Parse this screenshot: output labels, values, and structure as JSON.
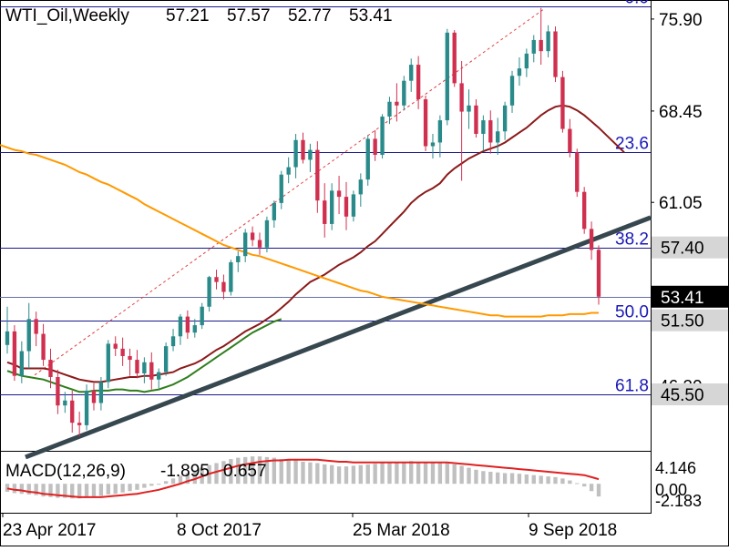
{
  "header": {
    "symbol_label": "WTI_Oil,Weekly",
    "ohlc": [
      "57.21",
      "57.57",
      "52.77",
      "53.41"
    ]
  },
  "price_axis": {
    "ticks": [
      "75.90",
      "68.45",
      "61.05",
      "46.20"
    ],
    "markers": [
      {
        "label": "57.40",
        "value": 57.4,
        "style": "gray"
      },
      {
        "label": "53.41",
        "value": 53.41,
        "style": "black"
      },
      {
        "label": "51.50",
        "value": 51.5,
        "style": "gray"
      },
      {
        "label": "45.50",
        "value": 45.5,
        "style": "gray"
      }
    ]
  },
  "fibonacci": {
    "levels": [
      {
        "label": "0.0",
        "value": 76.9
      },
      {
        "label": "23.6",
        "value": 65.1
      },
      {
        "label": "38.2",
        "value": 57.4
      },
      {
        "label": "50.0",
        "value": 51.5
      },
      {
        "label": "61.8",
        "value": 45.5
      }
    ]
  },
  "horizontal_lines": [
    {
      "value": 53.41,
      "color": "#6670a6"
    }
  ],
  "date_axis": {
    "labels": [
      "23 Apr 2017",
      "8 Oct 2017",
      "25 Mar 2018",
      "9 Sep 2018"
    ]
  },
  "macd": {
    "label": "MACD(12,26,9)",
    "values": [
      "-1.895",
      "0.657"
    ],
    "ticks": [
      "4.146",
      "0.00",
      "-2.183"
    ]
  },
  "colors": {
    "bull": "#2a8a8a",
    "bear": "#d0304f",
    "ema_red": "#8b1a1a",
    "ma_orange": "#ff9900",
    "ma_green": "#2f7d1c",
    "trendline": "#37474f",
    "fib_line": "#1a1a8c",
    "fib_text": "#1a1ab8",
    "macd_signal": "#e02020",
    "macd_hist": "#c0c0c0"
  },
  "chart_data": {
    "type": "candlestick",
    "title": "WTI_Oil,Weekly",
    "ylim": [
      41.0,
      77.0
    ],
    "x_tick_labels": [
      "23 Apr 2017",
      "8 Oct 2017",
      "25 Mar 2018",
      "9 Sep 2018"
    ],
    "candles": [
      [
        49.5,
        52.6,
        48.8,
        50.6
      ],
      [
        50.6,
        51.1,
        46.6,
        47.0
      ],
      [
        47.0,
        49.8,
        46.4,
        49.0
      ],
      [
        49.0,
        52.9,
        47.6,
        51.6
      ],
      [
        51.6,
        52.2,
        49.4,
        50.4
      ],
      [
        50.4,
        51.2,
        47.8,
        48.3
      ],
      [
        48.3,
        49.2,
        46.0,
        46.9
      ],
      [
        46.9,
        47.5,
        43.9,
        44.6
      ],
      [
        44.6,
        45.7,
        44.0,
        45.0
      ],
      [
        45.0,
        45.8,
        42.4,
        43.2
      ],
      [
        43.2,
        44.1,
        42.1,
        43.0
      ],
      [
        43.0,
        46.3,
        42.6,
        45.8
      ],
      [
        45.8,
        46.4,
        44.2,
        44.8
      ],
      [
        44.8,
        46.9,
        44.2,
        46.5
      ],
      [
        46.5,
        49.9,
        46.0,
        49.6
      ],
      [
        49.6,
        50.2,
        48.6,
        49.2
      ],
      [
        49.2,
        50.1,
        47.8,
        48.6
      ],
      [
        48.6,
        49.2,
        47.0,
        48.3
      ],
      [
        48.3,
        49.1,
        46.8,
        47.2
      ],
      [
        47.2,
        48.5,
        46.4,
        48.1
      ],
      [
        48.1,
        48.9,
        45.9,
        46.7
      ],
      [
        46.7,
        47.6,
        46.0,
        47.3
      ],
      [
        47.3,
        49.7,
        47.0,
        49.4
      ],
      [
        49.4,
        50.8,
        49.0,
        50.2
      ],
      [
        50.2,
        52.0,
        49.5,
        51.8
      ],
      [
        51.8,
        52.3,
        50.0,
        50.5
      ],
      [
        50.5,
        51.6,
        50.1,
        51.1
      ],
      [
        51.1,
        52.9,
        50.8,
        52.6
      ],
      [
        52.6,
        55.1,
        52.2,
        55.0
      ],
      [
        55.0,
        55.6,
        54.0,
        54.6
      ],
      [
        54.6,
        55.2,
        53.2,
        53.8
      ],
      [
        53.8,
        56.4,
        53.5,
        56.2
      ],
      [
        56.2,
        57.1,
        55.4,
        56.7
      ],
      [
        56.7,
        58.9,
        56.2,
        58.6
      ],
      [
        58.6,
        59.1,
        57.5,
        58.0
      ],
      [
        58.0,
        58.6,
        56.8,
        57.4
      ],
      [
        57.4,
        59.9,
        57.0,
        59.6
      ],
      [
        59.6,
        61.2,
        59.0,
        61.0
      ],
      [
        61.0,
        63.6,
        60.5,
        63.3
      ],
      [
        63.3,
        64.7,
        62.6,
        63.9
      ],
      [
        63.9,
        66.6,
        63.0,
        66.1
      ],
      [
        66.1,
        66.7,
        64.2,
        64.5
      ],
      [
        64.5,
        65.8,
        63.5,
        65.3
      ],
      [
        65.3,
        66.0,
        60.2,
        61.2
      ],
      [
        61.2,
        62.6,
        58.2,
        59.3
      ],
      [
        59.3,
        62.6,
        58.8,
        62.0
      ],
      [
        62.0,
        63.2,
        60.1,
        61.5
      ],
      [
        61.5,
        62.7,
        58.8,
        59.9
      ],
      [
        59.9,
        62.0,
        59.5,
        61.7
      ],
      [
        61.7,
        63.4,
        60.7,
        62.9
      ],
      [
        62.9,
        66.5,
        62.4,
        66.2
      ],
      [
        66.2,
        66.9,
        64.4,
        64.9
      ],
      [
        64.9,
        68.2,
        64.6,
        68.0
      ],
      [
        68.0,
        69.6,
        67.4,
        69.2
      ],
      [
        69.2,
        70.7,
        67.6,
        68.9
      ],
      [
        68.9,
        71.3,
        68.5,
        70.9
      ],
      [
        70.9,
        72.7,
        70.0,
        72.2
      ],
      [
        72.2,
        72.9,
        68.6,
        69.4
      ],
      [
        69.4,
        69.7,
        65.2,
        65.6
      ],
      [
        65.6,
        66.6,
        64.6,
        65.9
      ],
      [
        65.9,
        68.1,
        64.7,
        67.7
      ],
      [
        67.7,
        75.1,
        67.3,
        74.8
      ],
      [
        74.8,
        75.0,
        70.4,
        70.7
      ],
      [
        70.7,
        72.5,
        62.8,
        68.4
      ],
      [
        68.4,
        70.2,
        67.0,
        68.9
      ],
      [
        68.9,
        69.4,
        66.3,
        66.6
      ],
      [
        66.6,
        68.1,
        65.2,
        67.7
      ],
      [
        67.7,
        68.5,
        65.0,
        65.9
      ],
      [
        65.9,
        67.9,
        64.9,
        66.8
      ],
      [
        66.8,
        69.2,
        66.1,
        68.9
      ],
      [
        68.9,
        71.7,
        68.3,
        71.3
      ],
      [
        71.3,
        72.8,
        70.5,
        71.9
      ],
      [
        71.9,
        73.5,
        71.2,
        73.1
      ],
      [
        73.1,
        74.6,
        72.4,
        74.2
      ],
      [
        74.2,
        76.8,
        72.2,
        73.3
      ],
      [
        73.3,
        75.4,
        72.8,
        74.9
      ],
      [
        74.9,
        75.3,
        70.8,
        71.2
      ],
      [
        71.2,
        71.7,
        66.7,
        67.0
      ],
      [
        67.0,
        67.8,
        64.7,
        65.1
      ],
      [
        65.1,
        65.4,
        61.5,
        61.9
      ],
      [
        61.9,
        62.3,
        58.5,
        58.9
      ],
      [
        58.9,
        59.5,
        56.4,
        57.2
      ],
      [
        57.21,
        57.57,
        52.77,
        53.41
      ]
    ],
    "series": [
      {
        "name": "EMA (red)",
        "values": [
          48.1,
          47.9,
          47.6,
          47.6,
          47.6,
          47.6,
          47.5,
          47.3,
          47.1,
          46.9,
          46.7,
          46.6,
          46.5,
          46.5,
          46.6,
          46.7,
          46.8,
          46.9,
          46.9,
          47.0,
          47.0,
          47.1,
          47.2,
          47.3,
          47.6,
          47.8,
          48.0,
          48.3,
          48.7,
          49.1,
          49.4,
          49.8,
          50.2,
          50.6,
          50.9,
          51.2,
          51.6,
          52.0,
          52.5,
          53.0,
          53.6,
          54.1,
          54.6,
          54.9,
          55.2,
          55.6,
          56.0,
          56.3,
          56.6,
          57.0,
          57.5,
          57.9,
          58.5,
          59.1,
          59.7,
          60.3,
          61.0,
          61.5,
          61.9,
          62.2,
          62.6,
          63.3,
          63.8,
          64.2,
          64.6,
          64.9,
          65.2,
          65.4,
          65.6,
          65.9,
          66.3,
          66.7,
          67.1,
          67.6,
          68.1,
          68.5,
          68.8,
          68.9,
          68.8,
          68.5,
          68.1,
          67.6,
          67.1
        ]
      },
      {
        "name": "MA (orange)",
        "values": [
          65.5,
          65.3,
          65.2,
          65.0,
          64.9,
          64.7,
          64.5,
          64.3,
          64.1,
          63.8,
          63.5,
          63.3,
          63.0,
          62.7,
          62.5,
          62.2,
          61.9,
          61.6,
          61.3,
          60.9,
          60.6,
          60.3,
          60.0,
          59.7,
          59.4,
          59.1,
          58.8,
          58.5,
          58.2,
          57.9,
          57.6,
          57.4,
          57.2,
          57.0,
          56.8,
          56.7,
          56.5,
          56.3,
          56.1,
          55.9,
          55.7,
          55.5,
          55.3,
          55.1,
          54.9,
          54.7,
          54.5,
          54.3,
          54.1,
          53.9,
          53.8,
          53.6,
          53.4,
          53.3,
          53.2,
          53.1,
          53.0,
          52.9,
          52.8,
          52.7,
          52.6,
          52.5,
          52.4,
          52.3,
          52.2,
          52.1,
          52.0,
          51.9,
          51.9,
          51.8,
          51.8,
          51.8,
          51.8,
          51.8,
          51.8,
          51.9,
          51.9,
          51.9,
          52.0,
          52.0,
          52.0,
          52.1,
          52.1
        ]
      },
      {
        "name": "MA (green)",
        "values": [
          47.4,
          47.2,
          47.0,
          46.9,
          46.8,
          46.7,
          46.5,
          46.3,
          46.1,
          45.9,
          45.7,
          45.7,
          45.8,
          45.8,
          45.8,
          45.9,
          45.9,
          45.8,
          45.8,
          45.7,
          45.8,
          45.9,
          46.1,
          46.3,
          46.6,
          46.9,
          47.3,
          47.7,
          48.1,
          48.5,
          48.9,
          49.3,
          49.7,
          50.1,
          50.5,
          50.8,
          51.1,
          51.4,
          51.6
        ]
      }
    ],
    "trendline": {
      "x": [
        0,
        82
      ],
      "y": [
        41.3,
        59.1
      ]
    },
    "dotted_trendline": {
      "x": [
        0,
        74
      ],
      "y": [
        47.8,
        76.9
      ]
    },
    "macd": {
      "ylim": [
        -4.2,
        4.8
      ],
      "macd_values": [
        -1.2,
        -1.4,
        -1.5,
        -1.6,
        -1.7,
        -1.9,
        -2.0,
        -2.1,
        -2.1,
        -2.2,
        -2.2,
        -2.1,
        -2.0,
        -1.8,
        -1.6,
        -1.5,
        -1.3,
        -1.1,
        -0.9,
        -0.6,
        -0.3,
        0.0,
        0.4,
        0.8,
        1.2,
        1.6,
        2.0,
        2.4,
        2.8,
        3.1,
        3.4,
        3.7,
        3.9,
        4.0,
        4.1,
        4.1,
        4.0,
        3.9,
        3.7,
        3.6,
        3.5,
        3.3,
        3.2,
        3.1,
        2.9,
        2.8,
        2.6,
        2.6,
        2.7,
        2.8,
        2.9,
        3.0,
        3.1,
        3.2,
        3.2,
        3.3,
        3.4,
        3.3,
        3.3,
        3.2,
        3.1,
        3.1,
        2.9,
        2.7,
        2.4,
        2.1,
        1.9,
        1.8,
        1.7,
        1.6,
        1.6,
        1.5,
        1.4,
        1.3,
        1.2,
        1.1,
        1.0,
        0.8,
        0.5,
        0.1,
        -0.4,
        -1.1,
        -1.9
      ],
      "signal_values": [
        -0.7,
        -0.9,
        -1.0,
        -1.2,
        -1.3,
        -1.5,
        -1.6,
        -1.7,
        -1.8,
        -1.9,
        -2.0,
        -2.0,
        -2.0,
        -2.0,
        -1.9,
        -1.8,
        -1.7,
        -1.6,
        -1.5,
        -1.3,
        -1.1,
        -0.9,
        -0.6,
        -0.3,
        0.0,
        0.4,
        0.7,
        1.1,
        1.5,
        1.8,
        2.1,
        2.4,
        2.7,
        2.9,
        3.1,
        3.3,
        3.4,
        3.5,
        3.5,
        3.6,
        3.6,
        3.6,
        3.6,
        3.6,
        3.5,
        3.4,
        3.3,
        3.3,
        3.2,
        3.2,
        3.2,
        3.2,
        3.2,
        3.2,
        3.2,
        3.2,
        3.2,
        3.2,
        3.2,
        3.2,
        3.2,
        3.2,
        3.1,
        3.0,
        2.9,
        2.8,
        2.7,
        2.6,
        2.5,
        2.4,
        2.3,
        2.2,
        2.1,
        2.0,
        1.9,
        1.8,
        1.7,
        1.6,
        1.5,
        1.4,
        1.3,
        1.0,
        0.7
      ]
    }
  }
}
